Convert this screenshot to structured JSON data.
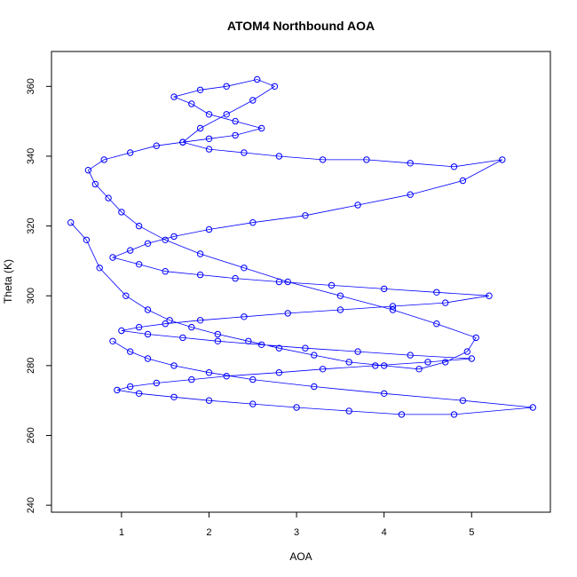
{
  "chart_data": {
    "type": "line",
    "title": "ATOM4 Northbound AOA",
    "xlabel": "AOA",
    "ylabel": "Theta (K)",
    "xlim": [
      0.2,
      5.9
    ],
    "ylim": [
      238,
      370
    ],
    "xticks": [
      1,
      2,
      3,
      4,
      5
    ],
    "yticks": [
      240,
      260,
      280,
      300,
      320,
      340,
      360
    ],
    "grid": false,
    "legend": "none",
    "marker": "open-circle",
    "color": "#0000ff",
    "series": [
      {
        "x": [
          0.42,
          0.6,
          0.75,
          1.05,
          1.3,
          1.55,
          1.8,
          2.1,
          2.45,
          2.8,
          3.2,
          3.6,
          4.0,
          4.4,
          4.7,
          4.95,
          5.05,
          4.6,
          4.1,
          3.5,
          2.9,
          2.4,
          1.9,
          1.5,
          1.2,
          1.0,
          0.85,
          0.7,
          0.62,
          0.8,
          1.1,
          1.4,
          1.7,
          2.0,
          2.3,
          2.6,
          2.3,
          2.0,
          1.8,
          1.6,
          1.9,
          2.2,
          2.55,
          2.75,
          2.5,
          2.2,
          1.9,
          1.7,
          2.0,
          2.4,
          2.8,
          3.3,
          3.8,
          4.3,
          4.8,
          5.35,
          4.9,
          4.3,
          3.7,
          3.1,
          2.5,
          2.0,
          1.6,
          1.3,
          1.1,
          0.9,
          1.2,
          1.5,
          1.9,
          2.3,
          2.8,
          3.4,
          4.0,
          4.6,
          5.2,
          4.7,
          4.1,
          3.5,
          2.9,
          2.4,
          1.9,
          1.5,
          1.2,
          1.0,
          1.3,
          1.7,
          2.1,
          2.6,
          3.1,
          3.7,
          4.3,
          5.0,
          4.5,
          3.9,
          3.3,
          2.8,
          2.2,
          1.8,
          1.4,
          1.1,
          0.95,
          1.2,
          1.6,
          2.0,
          2.5,
          3.0,
          3.6,
          4.2,
          4.8,
          5.7,
          4.9,
          4.0,
          3.2,
          2.5,
          2.0,
          1.6,
          1.3,
          1.1,
          0.9
        ],
        "y": [
          321,
          316,
          308,
          300,
          296,
          293,
          291,
          289,
          287,
          285,
          283,
          281,
          280,
          279,
          281,
          284,
          288,
          292,
          296,
          300,
          304,
          308,
          312,
          316,
          320,
          324,
          328,
          332,
          336,
          339,
          341,
          343,
          344,
          345,
          346,
          348,
          350,
          352,
          355,
          357,
          359,
          360,
          362,
          360,
          356,
          352,
          348,
          344,
          342,
          341,
          340,
          339,
          339,
          338,
          337,
          339,
          333,
          329,
          326,
          323,
          321,
          319,
          317,
          315,
          313,
          311,
          309,
          307,
          306,
          305,
          304,
          303,
          302,
          301,
          300,
          298,
          297,
          296,
          295,
          294,
          293,
          292,
          291,
          290,
          289,
          288,
          287,
          286,
          285,
          284,
          283,
          282,
          281,
          280,
          279,
          278,
          277,
          276,
          275,
          274,
          273,
          272,
          271,
          270,
          269,
          268,
          267,
          266,
          266,
          268,
          270,
          272,
          274,
          276,
          278,
          280,
          282,
          284,
          287
        ]
      }
    ]
  }
}
